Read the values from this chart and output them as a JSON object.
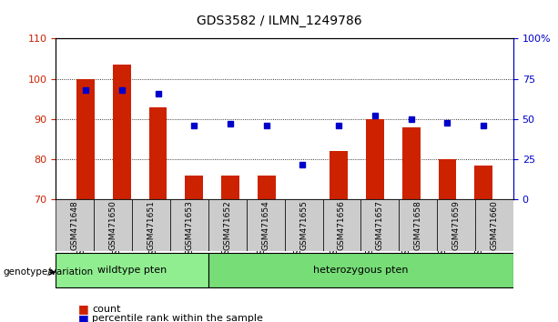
{
  "title": "GDS3582 / ILMN_1249786",
  "categories": [
    "GSM471648",
    "GSM471650",
    "GSM471651",
    "GSM471653",
    "GSM471652",
    "GSM471654",
    "GSM471655",
    "GSM471656",
    "GSM471657",
    "GSM471658",
    "GSM471659",
    "GSM471660"
  ],
  "bar_values": [
    100,
    103.5,
    93,
    76,
    76,
    76,
    70.2,
    82,
    90,
    88,
    80,
    78.5
  ],
  "percentile_values": [
    68,
    68,
    66,
    46,
    47,
    46,
    22,
    46,
    52,
    50,
    48,
    46
  ],
  "ylim_left": [
    70,
    110
  ],
  "ylim_right": [
    0,
    100
  ],
  "yticks_left": [
    70,
    80,
    90,
    100,
    110
  ],
  "yticks_right": [
    0,
    25,
    50,
    75,
    100
  ],
  "bar_color": "#CC2200",
  "percentile_color": "#0000CC",
  "bar_bottom": 70,
  "wildtype_samples": [
    "GSM471648",
    "GSM471650",
    "GSM471651",
    "GSM471653"
  ],
  "heterozygous_samples": [
    "GSM471652",
    "GSM471654",
    "GSM471655",
    "GSM471656",
    "GSM471657",
    "GSM471658",
    "GSM471659",
    "GSM471660"
  ],
  "wildtype_label": "wildtype pten",
  "heterozygous_label": "heterozygous pten",
  "genotype_label": "genotype/variation",
  "legend_count": "count",
  "legend_percentile": "percentile rank within the sample",
  "wildtype_color": "#90EE90",
  "heterozygous_color": "#77DD77",
  "xlabel_color": "#888888",
  "bg_color": "#CCCCCC",
  "right_axis_color": "#0000CC",
  "left_axis_color": "#CC2200"
}
